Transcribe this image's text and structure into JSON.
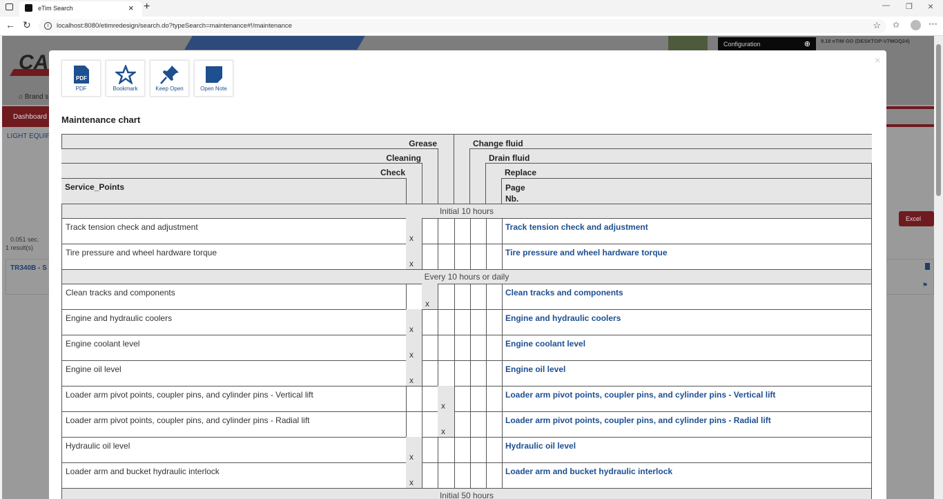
{
  "browser": {
    "tab_title": "eTim Search",
    "url": "localhost:8080/etimredesign/search.do?typeSearch=maintenance#!/maintenance"
  },
  "background": {
    "brand_logo": "CA",
    "brand_link": "Brand s",
    "dashboard": "Dashboard",
    "category": "LIGHT EQUIP",
    "configuration": "Configuration",
    "version": "9.18 eTIM GO (DESKTOP-V7MOQ24)",
    "excel": "Excel",
    "timing": "0.051 sec.",
    "results": "1 result(s)",
    "result_title": "TR340B - S"
  },
  "toolbar": [
    {
      "label": "PDF",
      "icon": "pdf-icon"
    },
    {
      "label": "Bookmark",
      "icon": "star-icon"
    },
    {
      "label": "Keep Open",
      "icon": "pin-icon"
    },
    {
      "label": "Open Note",
      "icon": "note-icon"
    }
  ],
  "title": "Maintenance chart",
  "headers": {
    "grease": "Grease",
    "cleaning": "Cleaning",
    "check": "Check",
    "service_points": "Service_Points",
    "change_fluid": "Change fluid",
    "drain_fluid": "Drain fluid",
    "replace": "Replace",
    "page_nb": "Page Nb."
  },
  "mark": "x",
  "sections": [
    {
      "label": "Initial 10 hours",
      "rows": [
        {
          "name": "Track tension check and adjustment",
          "col": "check"
        },
        {
          "name": "Tire pressure and wheel hardware torque",
          "col": "check"
        }
      ]
    },
    {
      "label": "Every 10 hours or daily",
      "rows": [
        {
          "name": "Clean tracks and components",
          "col": "cleaning"
        },
        {
          "name": "Engine and hydraulic coolers",
          "col": "check"
        },
        {
          "name": "Engine coolant level",
          "col": "check"
        },
        {
          "name": "Engine oil level",
          "col": "check"
        },
        {
          "name": "Loader arm pivot points, coupler pins, and cylinder pins - Vertical lift",
          "col": "grease"
        },
        {
          "name": "Loader arm pivot points, coupler pins, and cylinder pins - Radial lift",
          "col": "grease"
        },
        {
          "name": "Hydraulic oil level",
          "col": "check"
        },
        {
          "name": "Loader arm and bucket hydraulic interlock",
          "col": "check"
        }
      ]
    },
    {
      "label": "Initial 50 hours",
      "rows": []
    }
  ]
}
